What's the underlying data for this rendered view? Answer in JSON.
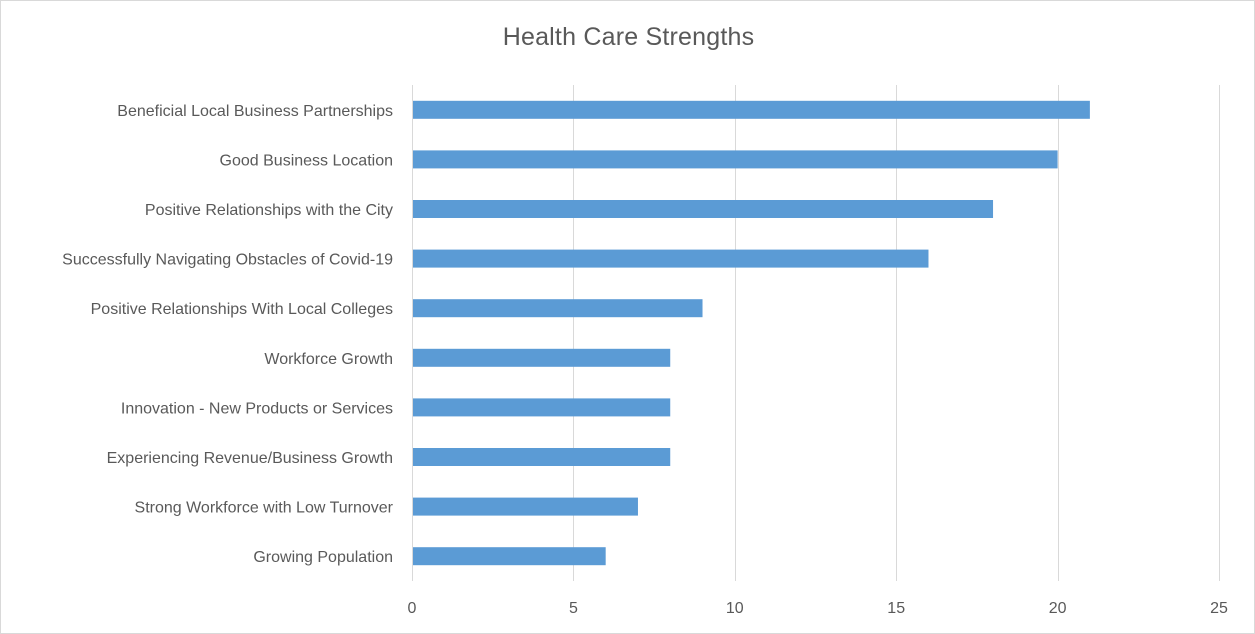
{
  "chart_data": {
    "type": "bar",
    "orientation": "horizontal",
    "title": "Health Care Strengths",
    "xlabel": "",
    "ylabel": "",
    "categories": [
      "Beneficial Local Business Partnerships",
      "Good Business Location",
      "Positive Relationships with the City",
      "Successfully Navigating Obstacles of Covid-19",
      "Positive Relationships With Local Colleges",
      "Workforce Growth",
      "Innovation - New Products or Services",
      "Experiencing Revenue/Business Growth",
      "Strong Workforce with Low Turnover",
      "Growing Population"
    ],
    "values": [
      21,
      20,
      18,
      16,
      9,
      8,
      8,
      8,
      7,
      6
    ],
    "xlim": [
      0,
      25
    ],
    "xticks": [
      0,
      5,
      10,
      15,
      20,
      25
    ],
    "grid": "vertical",
    "legend": "none",
    "colors": {
      "bar": "#5b9bd5",
      "grid": "#d9d9d9",
      "text": "#595959",
      "border": "#d9d9d9"
    }
  }
}
